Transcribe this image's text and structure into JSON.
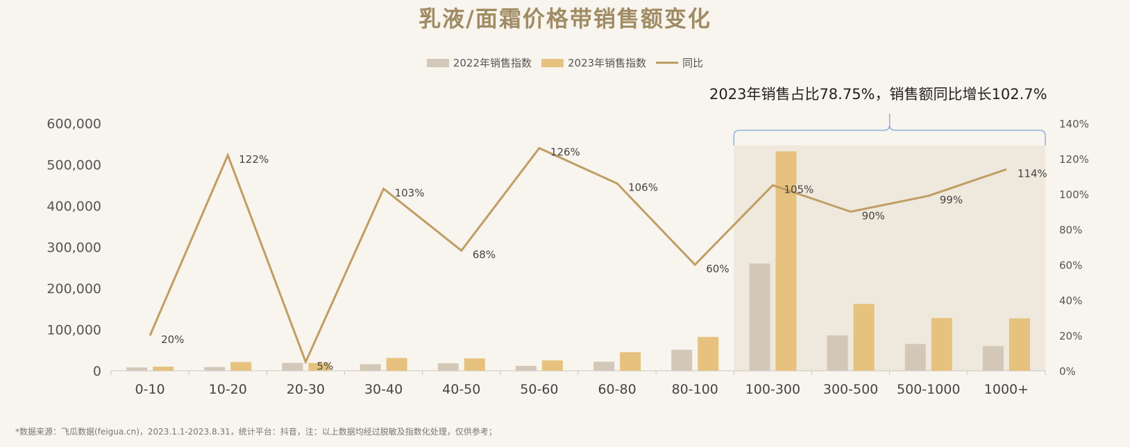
{
  "title": "乳液/面霜价格带销售额变化",
  "legend": {
    "s2022": "2022年销售指数",
    "s2023": "2023年销售指数",
    "yoy": "同比"
  },
  "annotation": "2023年销售占比78.75%，销售额同比增长102.7%",
  "footnote": "*数据来源：飞瓜数据(feigua.cn)，2023.1.1-2023.8.31，统计平台：抖音，注：以上数据均经过脱敏及指数化处理，仅供参考；",
  "colors": {
    "bar2022": "#d3c8b8",
    "bar2023": "#e6c27e",
    "line": "#bf9d63",
    "highlight": "#efe8dc",
    "bracket": "#7aa6e0",
    "title": "#a08c64"
  },
  "chart_data": {
    "type": "bar",
    "categories": [
      "0-10",
      "10-20",
      "20-30",
      "30-40",
      "40-50",
      "50-60",
      "60-80",
      "80-100",
      "100-300",
      "300-500",
      "500-1000",
      "1000+"
    ],
    "series": [
      {
        "name": "2022年销售指数",
        "values": [
          8000,
          9000,
          19000,
          16000,
          18000,
          12000,
          22000,
          51000,
          260000,
          86000,
          65000,
          60000
        ]
      },
      {
        "name": "2023年销售指数",
        "values": [
          10000,
          21000,
          19000,
          31000,
          30000,
          25000,
          45000,
          82000,
          532000,
          162000,
          128000,
          127000
        ]
      }
    ],
    "yoy": {
      "name": "同比",
      "values": [
        20,
        122,
        5,
        103,
        68,
        126,
        106,
        60,
        105,
        90,
        99,
        114
      ],
      "labels": [
        "20%",
        "122%",
        "5%",
        "103%",
        "68%",
        "126%",
        "106%",
        "60%",
        "105%",
        "90%",
        "99%",
        "114%"
      ]
    },
    "ylim": [
      0,
      600000
    ],
    "y_ticks": [
      "0",
      "100,000",
      "200,000",
      "300,000",
      "400,000",
      "500,000",
      "600,000"
    ],
    "y2lim": [
      0,
      140
    ],
    "y2_ticks": [
      "0%",
      "20%",
      "40%",
      "60%",
      "80%",
      "100%",
      "120%",
      "140%"
    ],
    "highlight_range": [
      "100-300",
      "1000+"
    ],
    "legend_position": "top",
    "grid": false
  }
}
